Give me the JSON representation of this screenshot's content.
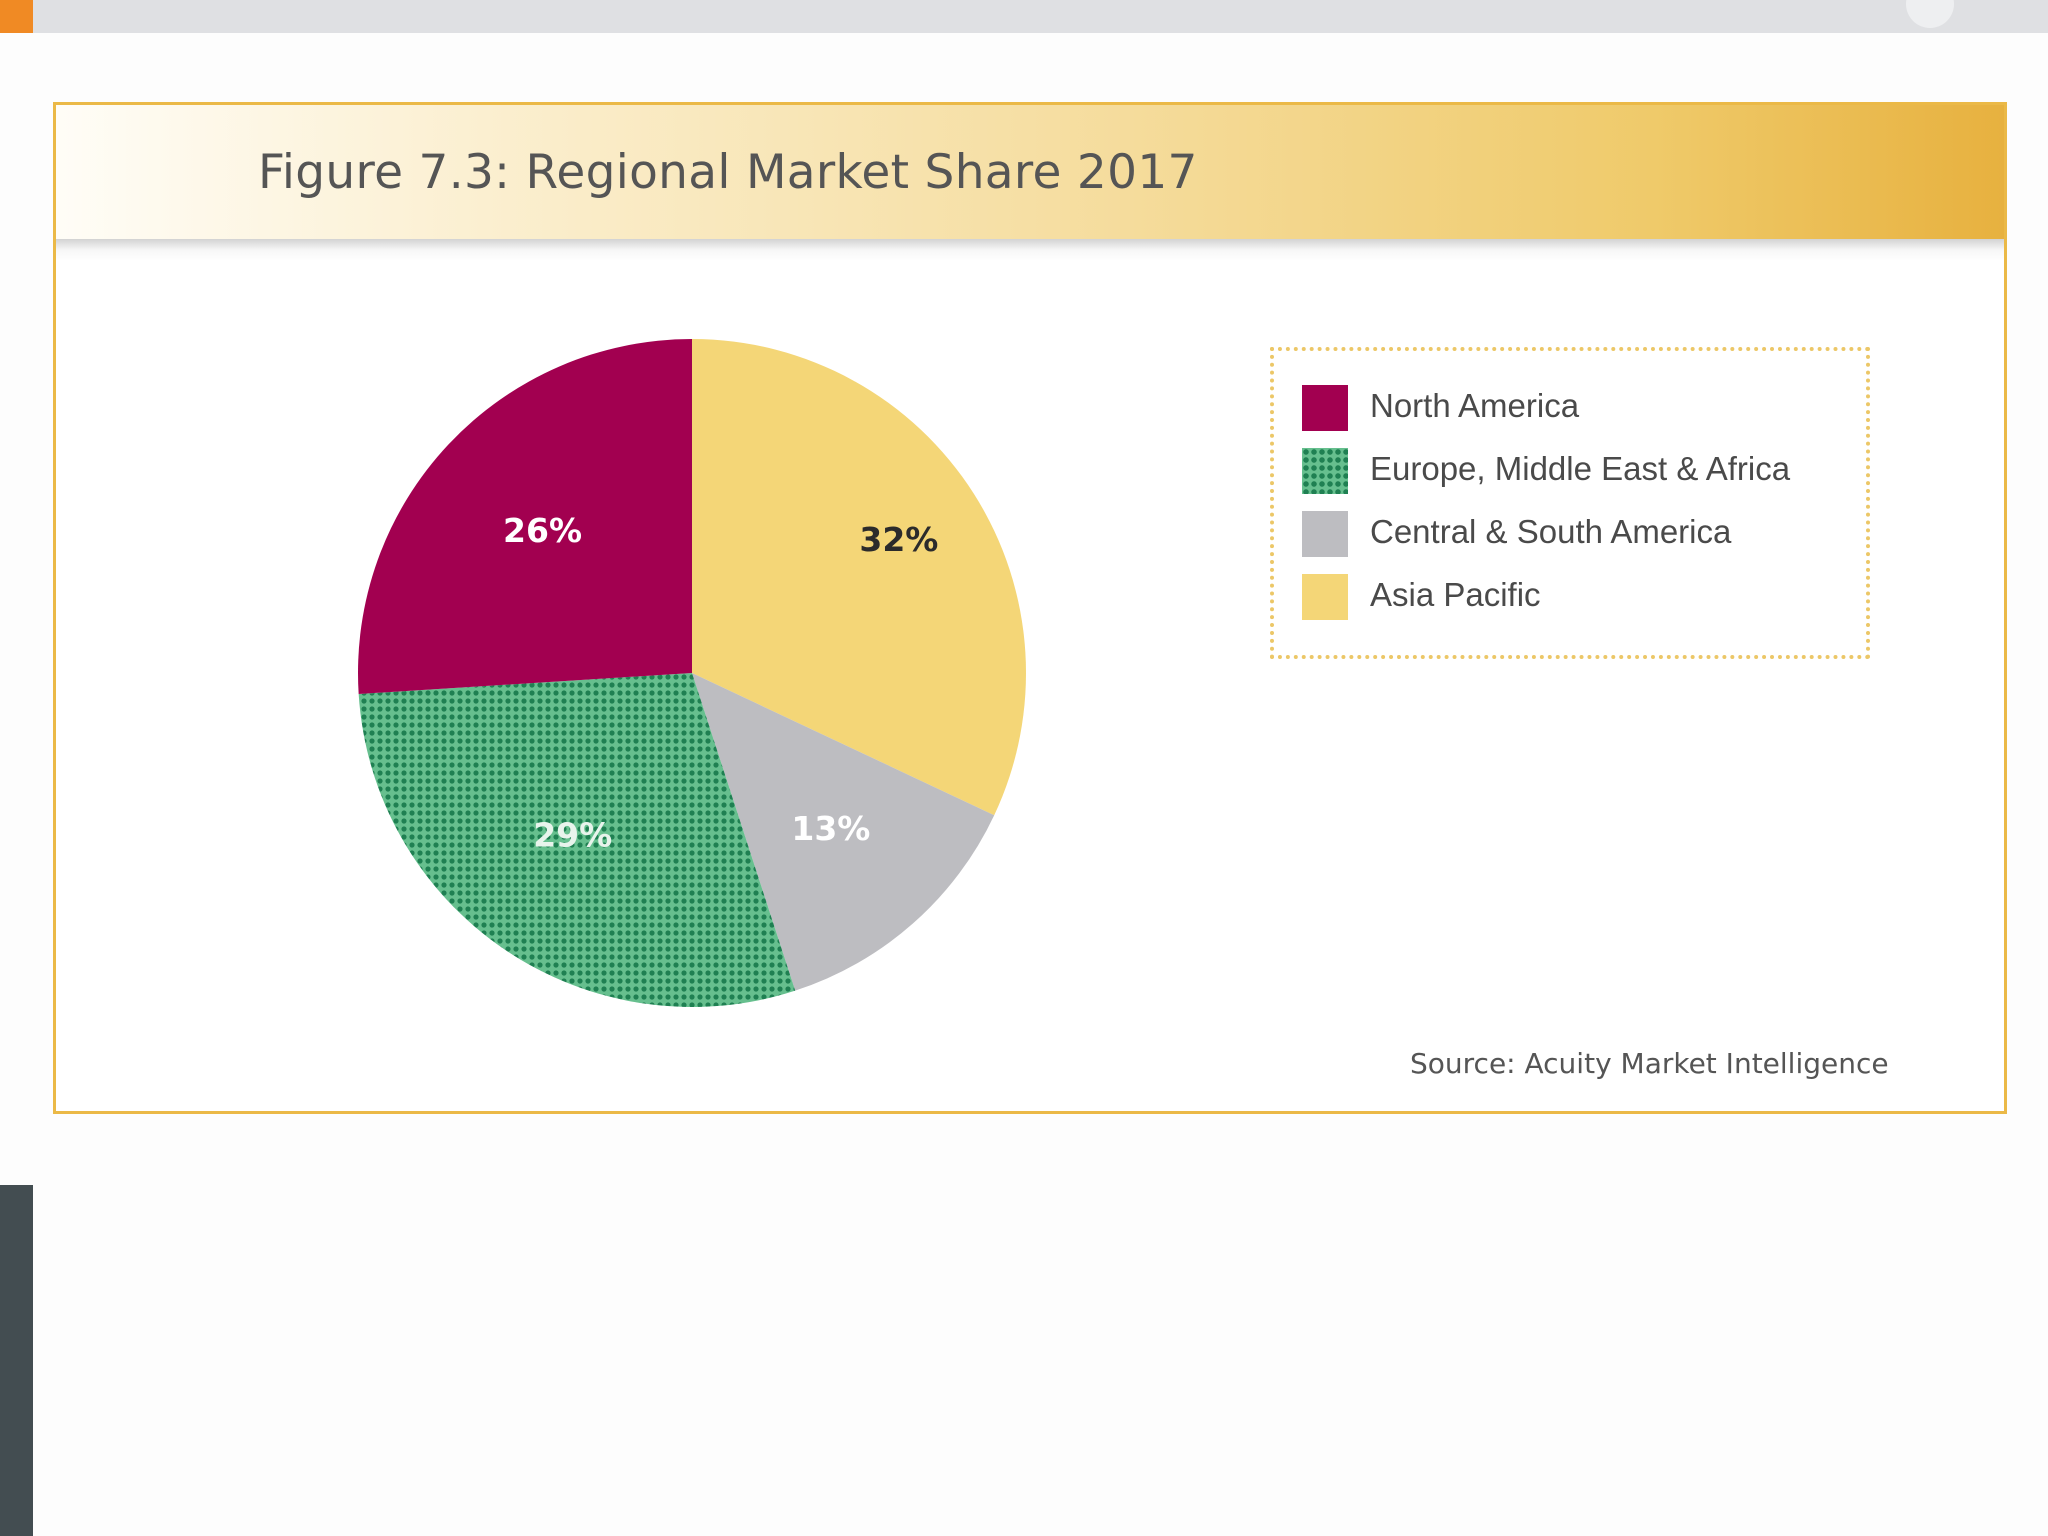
{
  "figure": {
    "title": "Figure 7.3: Regional Market Share 2017",
    "source": "Source: Acuity Market Intelligence"
  },
  "chart_data": {
    "type": "pie",
    "title": "Figure 7.3: Regional Market Share 2017",
    "categories": [
      "Asia Pacific",
      "Central & South America",
      "Europe, Middle East & Africa",
      "North America"
    ],
    "values": [
      32,
      13,
      29,
      26
    ],
    "labels": [
      "32%",
      "13%",
      "29%",
      "26%"
    ],
    "colors": [
      "#f4d677",
      "#bdbdc1",
      "#5fb98a",
      "#a20050"
    ],
    "patterns": [
      "solid",
      "solid",
      "dotted",
      "solid"
    ],
    "label_colors": [
      "#2b2b2b",
      "#ffffff",
      "#e8f4ec",
      "#ffffff"
    ],
    "legend": {
      "placement": "right",
      "entries": [
        "North America",
        "Europe, Middle East & Africa",
        "Central & South America",
        "Asia Pacific"
      ],
      "colors": [
        "#a20050",
        "#5fb98a",
        "#bdbdc1",
        "#f4d677"
      ],
      "patterns": [
        "solid",
        "dotted",
        "solid",
        "solid"
      ]
    }
  }
}
